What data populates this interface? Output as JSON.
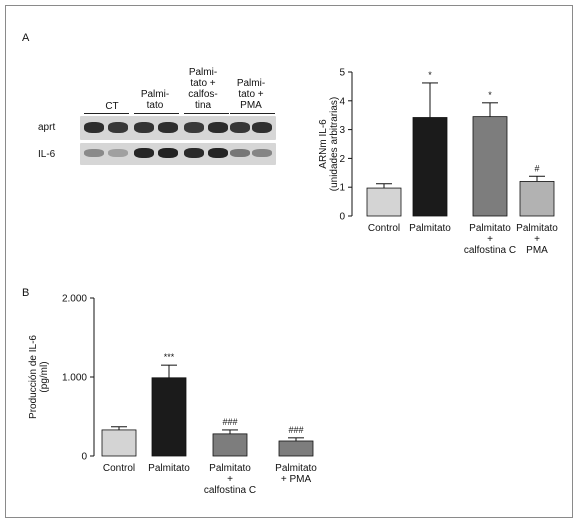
{
  "panel_a_label": "A",
  "panel_b_label": "B",
  "gel": {
    "group_labels": [
      "CT",
      "Palmi-\ntato",
      "Palmi-\ntato +\ncalfos-\ntina",
      "Palmi-\ntato +\nPMA"
    ],
    "row_labels": [
      "aprt",
      "IL-6"
    ]
  },
  "chart_data": [
    {
      "type": "bar",
      "panel": "A",
      "ylabel": "ARNm IL-6\n(unidades arbitrarias)",
      "xlabel": "",
      "ylim": [
        0,
        5
      ],
      "yticks": [
        "0",
        "1",
        "2",
        "3",
        "4",
        "5"
      ],
      "categories": [
        "Control",
        "Palmitato",
        "Palmitato\n+\ncalfostina C",
        "Palmitato\n+\nPMA"
      ],
      "values": [
        0.97,
        3.42,
        3.45,
        1.2
      ],
      "errors": [
        0.15,
        1.2,
        0.48,
        0.18
      ],
      "annotations": [
        "",
        "*",
        "*",
        "#"
      ],
      "colors": [
        "#d4d4d4",
        "#1b1b1b",
        "#7d7d7d",
        "#b2b2b2"
      ],
      "grid": false
    },
    {
      "type": "bar",
      "panel": "B",
      "ylabel": "Producción de IL-6\n(pg/ml)",
      "xlabel": "",
      "ylim": [
        0,
        2000
      ],
      "yticks": [
        "0",
        "1.000",
        "2.000"
      ],
      "categories": [
        "Control",
        "Palmitato",
        "Palmitato\n+\ncalfostina C",
        "Palmitato\n+ PMA"
      ],
      "values": [
        330,
        990,
        280,
        190
      ],
      "errors": [
        40,
        160,
        50,
        40
      ],
      "annotations": [
        "",
        "***",
        "###",
        "###"
      ],
      "colors": [
        "#d4d4d4",
        "#1b1b1b",
        "#7d7d7d",
        "#7d7d7d"
      ],
      "grid": false
    }
  ]
}
